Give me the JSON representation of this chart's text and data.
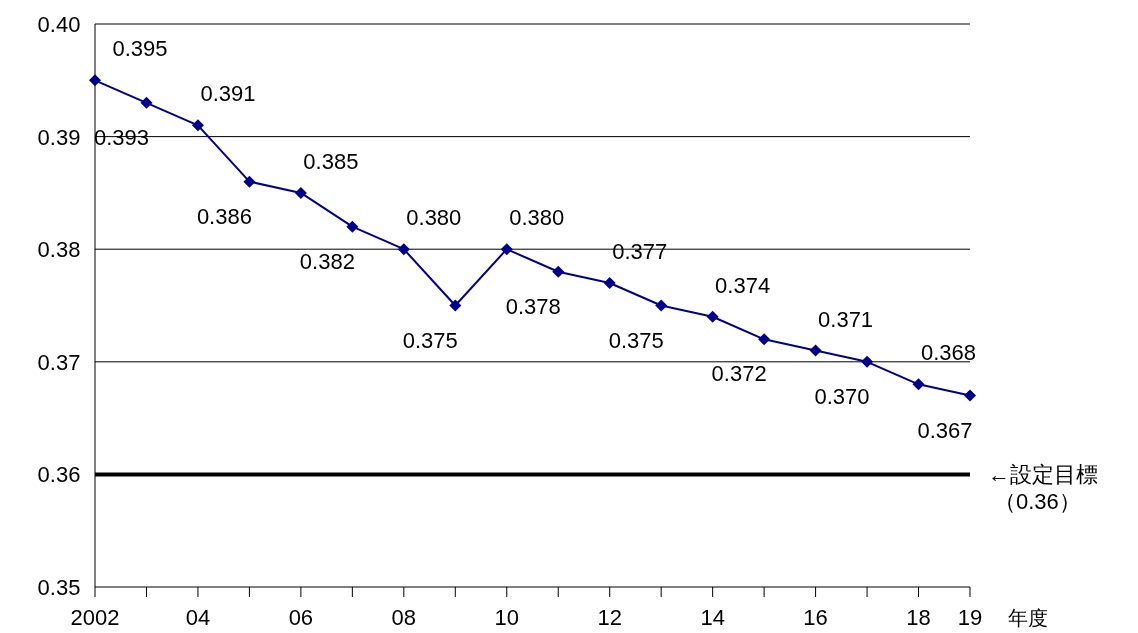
{
  "chart_data": {
    "type": "line",
    "xlabel": "年度",
    "categories": [
      "2002",
      null,
      "04",
      null,
      "06",
      null,
      "08",
      null,
      "10",
      null,
      "12",
      null,
      "14",
      null,
      "16",
      null,
      "18",
      "19"
    ],
    "series": [
      {
        "color": "#00008b",
        "values": [
          0.395,
          0.393,
          0.391,
          0.386,
          0.385,
          0.382,
          0.38,
          0.375,
          0.38,
          0.378,
          0.377,
          0.375,
          0.374,
          0.372,
          0.371,
          0.37,
          0.368,
          0.367
        ],
        "value_labels": [
          "0.395",
          "0.393",
          "0.391",
          "0.386",
          "0.385",
          "0.382",
          "0.380",
          "0.375",
          "0.380",
          "0.378",
          "0.377",
          "0.375",
          "0.374",
          "0.372",
          "0.371",
          "0.370",
          "0.368",
          "0.367"
        ]
      }
    ],
    "ylim": [
      0.35,
      0.4
    ],
    "yticks": [
      0.35,
      0.36,
      0.37,
      0.38,
      0.39,
      {
        "value": 0.4,
        "label": "0.40"
      }
    ],
    "grid": "y",
    "marker": "diamond",
    "line_style": "solid",
    "ref_lines": [
      {
        "axis": "y",
        "value": 0.36,
        "label": "←設定目標",
        "color": "#000000"
      }
    ],
    "annotations": [
      "（0.36）"
    ]
  }
}
